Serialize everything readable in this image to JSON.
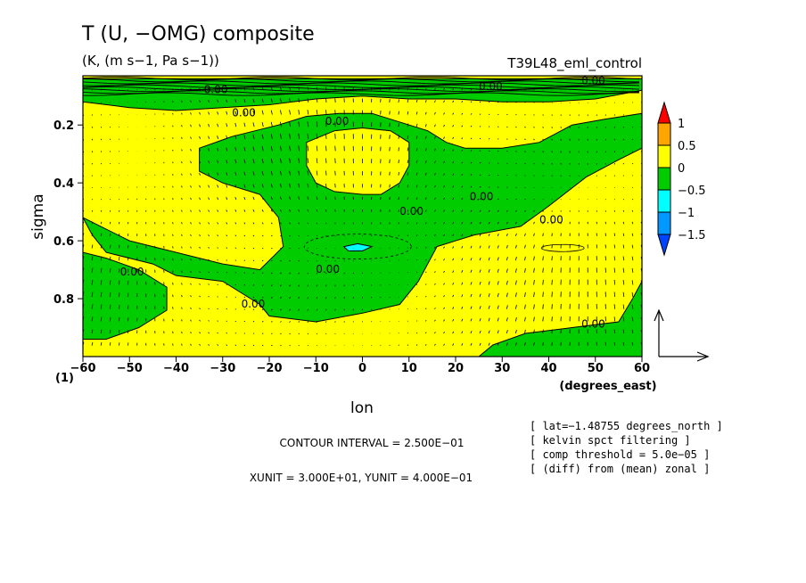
{
  "chart_data": {
    "type": "heatmap",
    "title": "T (U, −OMG) composite",
    "subtitle": "(K, (m s−1, Pa s−1))",
    "experiment": "T39L48_eml_control",
    "xlabel": "lon",
    "xunit_label": "(degrees_east)",
    "ylabel": "sigma",
    "corner_label": "(1)",
    "xlim": [
      -60,
      60
    ],
    "ylim": [
      1.0,
      0.0
    ],
    "x_ticks": [
      -60,
      -50,
      -40,
      -30,
      -20,
      -10,
      0,
      10,
      20,
      30,
      40,
      50,
      60
    ],
    "x_tick_labels": [
      "−60",
      "−50",
      "−40",
      "−30",
      "−20",
      "−10",
      "0",
      "10",
      "20",
      "30",
      "40",
      "50",
      "60"
    ],
    "y_ticks": [
      0.2,
      0.4,
      0.6,
      0.8
    ],
    "y_tick_labels": [
      "0.2",
      "0.4",
      "0.6",
      "0.8"
    ],
    "colorbar": {
      "labels": [
        "1",
        "0.5",
        "0",
        "−0.5",
        "−1",
        "−1.5"
      ],
      "levels": [
        1,
        0.5,
        0,
        -0.5,
        -1,
        -1.5
      ],
      "colors": [
        "#ff0000",
        "#ffa500",
        "#ffff00",
        "#00cc00",
        "#00ffff",
        "#0099ff",
        "#0044ff"
      ]
    },
    "contour_labels": [
      "0.00",
      "0.00",
      "0.00",
      "0.00",
      "0.00",
      "0.00",
      "0.00",
      "0.00",
      "0.00",
      "0.00",
      "0.00",
      "0.00",
      "0.00",
      "0.00"
    ],
    "regions": [
      {
        "level": "neg",
        "color": "#00cc00",
        "description_points": [
          [
            -60,
            0.04
          ],
          [
            60,
            0.04
          ],
          [
            60,
            0.08
          ],
          [
            50,
            0.11
          ],
          [
            40,
            0.12
          ],
          [
            30,
            0.12
          ],
          [
            20,
            0.11
          ],
          [
            10,
            0.11
          ],
          [
            0,
            0.1
          ],
          [
            -10,
            0.11
          ],
          [
            -20,
            0.13
          ],
          [
            -30,
            0.14
          ],
          [
            -40,
            0.15
          ],
          [
            -50,
            0.14
          ],
          [
            -60,
            0.12
          ]
        ]
      },
      {
        "level": "neg",
        "color": "#00cc00",
        "description_points": [
          [
            -60,
            0.52
          ],
          [
            -58,
            0.58
          ],
          [
            -55,
            0.64
          ],
          [
            -45,
            0.68
          ],
          [
            -40,
            0.72
          ],
          [
            -30,
            0.74
          ],
          [
            -22,
            0.82
          ],
          [
            -20,
            0.86
          ],
          [
            -10,
            0.88
          ],
          [
            0,
            0.85
          ],
          [
            8,
            0.82
          ],
          [
            12,
            0.74
          ],
          [
            16,
            0.62
          ],
          [
            24,
            0.58
          ],
          [
            34,
            0.55
          ],
          [
            40,
            0.48
          ],
          [
            48,
            0.38
          ],
          [
            55,
            0.32
          ],
          [
            60,
            0.28
          ],
          [
            60,
            0.16
          ],
          [
            52,
            0.18
          ],
          [
            45,
            0.2
          ],
          [
            38,
            0.26
          ],
          [
            30,
            0.28
          ],
          [
            22,
            0.28
          ],
          [
            18,
            0.26
          ],
          [
            14,
            0.22
          ],
          [
            10,
            0.2
          ],
          [
            2,
            0.16
          ],
          [
            -5,
            0.16
          ],
          [
            -12,
            0.17
          ],
          [
            -18,
            0.2
          ],
          [
            -28,
            0.24
          ],
          [
            -35,
            0.28
          ],
          [
            -35,
            0.36
          ],
          [
            -30,
            0.4
          ],
          [
            -22,
            0.44
          ],
          [
            -18,
            0.52
          ],
          [
            -17,
            0.62
          ],
          [
            -22,
            0.7
          ],
          [
            -30,
            0.68
          ],
          [
            -40,
            0.64
          ],
          [
            -50,
            0.6
          ]
        ]
      },
      {
        "level": "pos",
        "color": "#ffff00",
        "description_points": [
          [
            -12,
            0.26
          ],
          [
            -6,
            0.22
          ],
          [
            0,
            0.21
          ],
          [
            6,
            0.22
          ],
          [
            10,
            0.26
          ],
          [
            10,
            0.34
          ],
          [
            8,
            0.4
          ],
          [
            4,
            0.44
          ],
          [
            0,
            0.44
          ],
          [
            -6,
            0.43
          ],
          [
            -10,
            0.4
          ],
          [
            -12,
            0.34
          ]
        ]
      },
      {
        "level": "neg",
        "color": "#00cc00",
        "description_points": [
          [
            -60,
            0.64
          ],
          [
            -55,
            0.66
          ],
          [
            -48,
            0.7
          ],
          [
            -42,
            0.76
          ],
          [
            -42,
            0.84
          ],
          [
            -48,
            0.9
          ],
          [
            -55,
            0.94
          ],
          [
            -60,
            0.94
          ]
        ]
      },
      {
        "level": "neg",
        "color": "#00cc00",
        "description_points": [
          [
            25,
            1.0
          ],
          [
            28,
            0.96
          ],
          [
            35,
            0.92
          ],
          [
            45,
            0.9
          ],
          [
            55,
            0.88
          ],
          [
            58,
            0.8
          ],
          [
            60,
            0.74
          ],
          [
            60,
            1.0
          ]
        ]
      },
      {
        "level": "vneg",
        "color": "#00ffff",
        "description_points": [
          [
            -4,
            0.62
          ],
          [
            -1,
            0.61
          ],
          [
            2,
            0.62
          ],
          [
            0,
            0.635
          ],
          [
            -3,
            0.635
          ]
        ]
      }
    ],
    "vector_reference": {
      "xunit": 30.0,
      "yunit": 0.4
    }
  },
  "footer": {
    "contour_interval": "CONTOUR INTERVAL = 2.500E−01",
    "units": "XUNIT = 3.000E+01, YUNIT = 4.000E−01"
  },
  "notes": [
    "[ lat=−1.48755 degrees_north ]",
    "[ kelvin spct filtering ]",
    "[ comp threshold = 5.0e−05 ]",
    "[ (diff) from (mean) zonal ]"
  ]
}
